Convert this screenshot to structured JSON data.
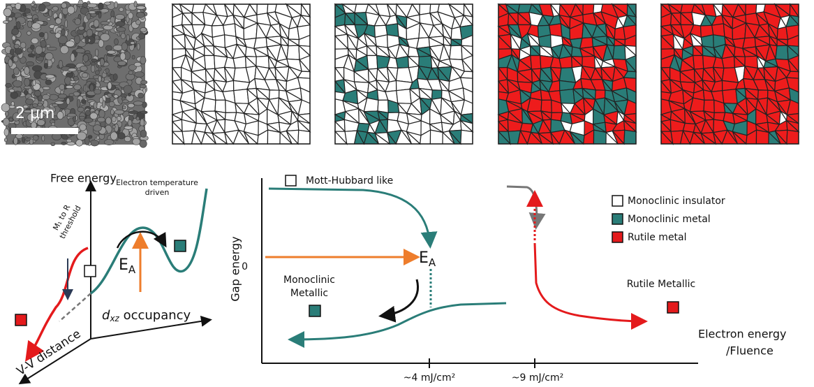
{
  "scale_bar": "2 μm",
  "energy_diagram": {
    "y_axis": "Free energy",
    "barrier_note": [
      "Electron temperature",
      "driven"
    ],
    "threshold_note": [
      "M₁ to R",
      "threshold"
    ],
    "barrier": {
      "main": "E",
      "sub": "A"
    },
    "x_axis": {
      "main": "d",
      "sub": "xz",
      "rest": " occupancy"
    },
    "depth_axis": "V-V distance"
  },
  "phase_diagram": {
    "y_axis": "Gap energy",
    "zero": "0",
    "start_label": "Mott-Hubbard like",
    "barrier": {
      "main": "E",
      "sub": "A"
    },
    "monoclinic_label": [
      "Monoclinic",
      "Metallic"
    ],
    "rutile_label": "Rutile Metallic",
    "x_axis": [
      "Electron energy",
      "/Fluence"
    ],
    "x_ticks": [
      "~4 mJ/cm²",
      "~9 mJ/cm²"
    ]
  },
  "legend": [
    "Monoclinic insulator",
    "Monoclinic metal",
    "Rutile metal"
  ]
}
